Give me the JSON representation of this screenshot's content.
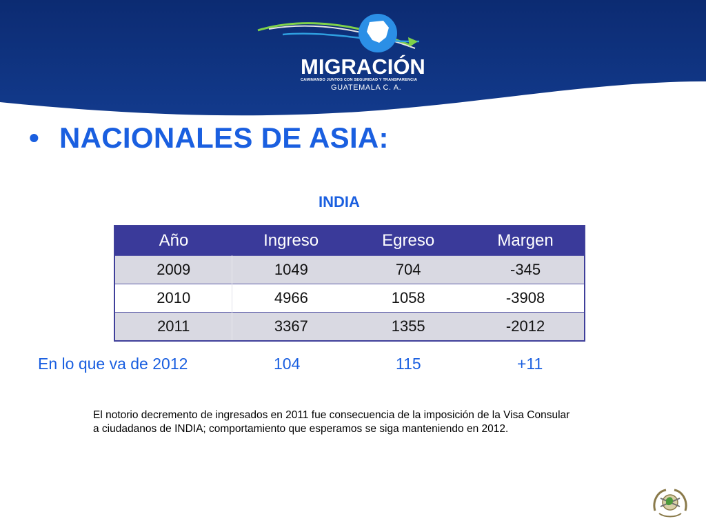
{
  "logo": {
    "wordmark": "MIGRACIÓN",
    "tagline": "CAMINANDO JUNTOS CON SEGURIDAD Y TRANSPARENCIA",
    "country": "GUATEMALA C. A."
  },
  "slide": {
    "bullet": "•",
    "title": "NACIONALES DE ASIA:",
    "country": "INDIA"
  },
  "table": {
    "headers": [
      "Año",
      "Ingreso",
      "Egreso",
      "Margen"
    ],
    "rows": [
      [
        "2009",
        "1049",
        "704",
        "-345"
      ],
      [
        "2010",
        "4966",
        "1058",
        "-3908"
      ],
      [
        "2011",
        "3367",
        "1355",
        "-2012"
      ]
    ]
  },
  "summary": {
    "label": "En lo que va de 2012",
    "ingreso": "104",
    "egreso": "115",
    "margen": "+11"
  },
  "note": "El notorio decremento de ingresados en 2011 fue consecuencia de la imposición de la Visa Consular a ciudadanos de INDIA; comportamiento que esperamos se siga manteniendo en 2012.",
  "colors": {
    "header_navy": "#0f2f7a",
    "title_blue": "#1a5fe0",
    "table_header": "#3a3a9a"
  }
}
